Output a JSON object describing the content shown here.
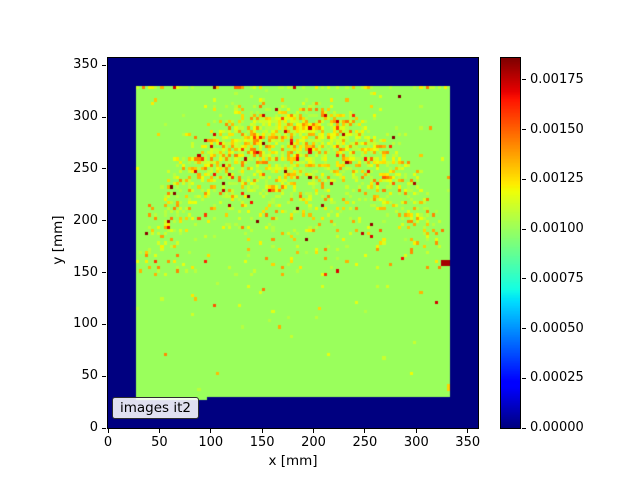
{
  "chart_data": {
    "type": "heatmap",
    "title": "",
    "xlabel": "x [mm]",
    "ylabel": "y [mm]",
    "legend_label": "images it2",
    "x_range_mm": [
      0,
      360
    ],
    "y_range_mm": [
      0,
      357
    ],
    "x_ticks": [
      0,
      50,
      100,
      150,
      200,
      250,
      300,
      350
    ],
    "x_tick_labels": [
      "0",
      "50",
      "100",
      "150",
      "200",
      "250",
      "300",
      "350"
    ],
    "y_ticks": [
      0,
      50,
      100,
      150,
      200,
      250,
      300,
      350
    ],
    "y_tick_labels": [
      "0",
      "50",
      "100",
      "150",
      "200",
      "250",
      "300",
      "350"
    ],
    "colormap": "jet",
    "clim": [
      0,
      0.00186
    ],
    "colorbar": {
      "tick_values": [
        0.00175,
        0.0015,
        0.00125,
        0.001,
        0.00075,
        0.0005,
        0.00025,
        0
      ],
      "tick_labels": [
        "0.00175",
        "0.00150",
        "0.00125",
        "0.00100",
        "0.00075",
        "0.00050",
        "0.00025",
        "0.00000"
      ]
    },
    "grid": {
      "nx": 120,
      "ny": 119,
      "cell_mm": 3
    },
    "background_value": 0,
    "plate": {
      "value": 0.001,
      "x_min": 26,
      "x_max": 333,
      "y_min": 30,
      "y_max": 330,
      "bottom_step": {
        "x_max": 95,
        "y_min": 27
      }
    },
    "noise": {
      "seed": 7,
      "ring": {
        "cx": 181,
        "cy": 163,
        "radius": 127,
        "sigma": 19,
        "peak_p": 0.55
      },
      "cap": {
        "radius": 92,
        "sigma": 44,
        "peak_p": 0.45
      },
      "interior_p": 0.05,
      "stray_p": 0.01,
      "top_edge_p": 0.4,
      "mag_base": 6e-05,
      "mag_span": 0.0004,
      "hot_p": 0.07,
      "hot_extra": 0.00045
    },
    "features": [
      {
        "name": "dark-red-streak-right-edge",
        "x_mm": [
          325,
          333
        ],
        "y_mm": [
          156,
          162
        ],
        "value": 0.0018
      },
      {
        "name": "orange-cell-top-edge",
        "x_mm": [
          124,
          130
        ],
        "y_mm": [
          327,
          330
        ],
        "value": 0.0015
      },
      {
        "name": "yellow-cell-right-edge",
        "x_mm": [
          329,
          333
        ],
        "y_mm": [
          37,
          43
        ],
        "value": 0.00128
      }
    ]
  }
}
